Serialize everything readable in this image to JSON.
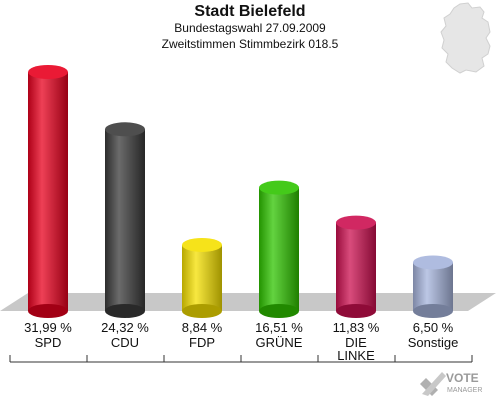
{
  "header": {
    "title": "Stadt Bielefeld",
    "subtitle": "Bundestagswahl 27.09.2009",
    "subtitle2": "Zweitstimmen Stimmbezirk 018.5"
  },
  "logo": {
    "main": "VOTE",
    "sub": "MANAGER"
  },
  "chart_data": {
    "type": "bar",
    "title": "Stadt Bielefeld",
    "subtitle": "Bundestagswahl 27.09.2009 – Zweitstimmen Stimmbezirk 018.5",
    "categories": [
      "SPD",
      "CDU",
      "FDP",
      "GRÜNE",
      "DIE LINKE",
      "Sonstige"
    ],
    "values": [
      31.99,
      24.32,
      8.84,
      16.51,
      11.83,
      6.5
    ],
    "value_labels": [
      "31,99 %",
      "24,32 %",
      "8,84 %",
      "16,51 %",
      "11,83 %",
      "6,50 %"
    ],
    "category_lines": [
      [
        "SPD"
      ],
      [
        "CDU"
      ],
      [
        "FDP"
      ],
      [
        "GRÜNE"
      ],
      [
        "DIE",
        "LINKE"
      ],
      [
        "Sonstige"
      ]
    ],
    "colors": [
      "#e8001e",
      "#3a3a3a",
      "#f5e000",
      "#2fc400",
      "#cc1050",
      "#a6b4dc"
    ],
    "ylim": [
      0,
      31.99
    ],
    "grid": false,
    "legend": "none"
  }
}
